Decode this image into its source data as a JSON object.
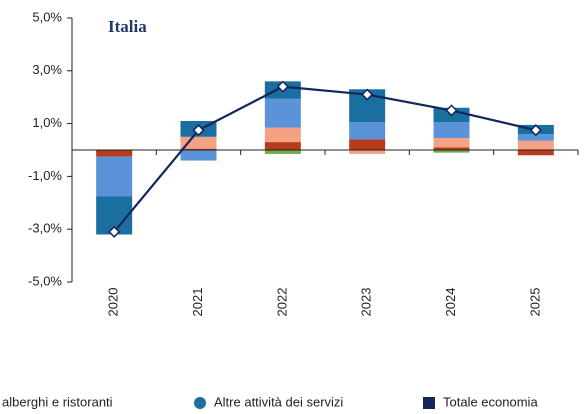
{
  "chart_data": {
    "type": "bar",
    "stacked": true,
    "title": "Italia",
    "categories": [
      "2020",
      "2021",
      "2022",
      "2023",
      "2024",
      "2025"
    ],
    "ylim": [
      -5,
      5
    ],
    "yticks": [
      {
        "value": -5,
        "label": "-5,0%"
      },
      {
        "value": -3,
        "label": "-3,0%"
      },
      {
        "value": -1,
        "label": "-1,0%"
      },
      {
        "value": 1,
        "label": "1,0%"
      },
      {
        "value": 3,
        "label": "3,0%"
      },
      {
        "value": 5,
        "label": "5,0%"
      }
    ],
    "series": [
      {
        "color": "#70ad47",
        "values": [
          0,
          0,
          -0.15,
          0,
          -0.1,
          0
        ]
      },
      {
        "color": "#b83b1c",
        "values": [
          -0.25,
          0.05,
          0.3,
          0.4,
          0.1,
          -0.2
        ]
      },
      {
        "color": "#f4a184",
        "values": [
          0,
          0.45,
          0.55,
          -0.15,
          0.35,
          0.35
        ]
      },
      {
        "name": "alberghi e ristoranti",
        "color": "#5b93d8",
        "values": [
          -1.5,
          -0.4,
          1.1,
          0.65,
          0.6,
          0.25
        ]
      },
      {
        "name": "Altre attività dei servizi",
        "color": "#1a6ea0",
        "values": [
          -1.45,
          0.6,
          0.65,
          1.25,
          0.55,
          0.35
        ]
      },
      {
        "name": "Totale economia",
        "type": "line",
        "color": "#14265c",
        "values": [
          -3.1,
          0.75,
          2.4,
          2.1,
          1.5,
          0.75
        ]
      }
    ]
  }
}
